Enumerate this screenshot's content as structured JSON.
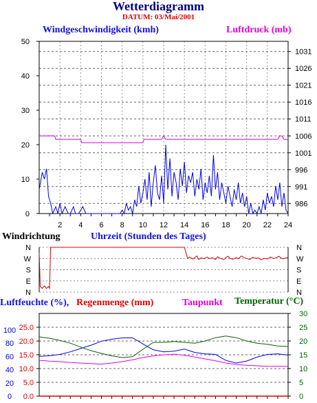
{
  "header": {
    "title": "Wetterdiagramm",
    "subtitle": "DATUM: 03/Mai/2001"
  },
  "labels": {
    "wind_speed": "Windgeschwindigkeit (kmh)",
    "pressure": "Luftdruck (mb)",
    "wind_direction": "Windrichtung",
    "time_axis": "Uhrzeit (Stunden des Tages)",
    "humidity": "Luftfeuchte (%),",
    "rain": "Regenmenge (mm)",
    "dewpoint": "Taupunkt",
    "temperature": "Temperatur (°C)"
  },
  "colors": {
    "wind_speed": "#0000dd",
    "pressure": "#e000e0",
    "wind_direction": "#dd0000",
    "humidity": "#0000dd",
    "rain": "#dd0000",
    "dewpoint": "#e000e0",
    "temperature": "#006400"
  },
  "chart_data": [
    {
      "type": "line",
      "x_range": [
        0,
        24
      ],
      "x_ticks": [
        2,
        4,
        6,
        8,
        10,
        12,
        14,
        16,
        18,
        20,
        22,
        24
      ],
      "y_left_range": [
        0,
        50
      ],
      "y_left_ticks": [
        0,
        10,
        20,
        30,
        40,
        50
      ],
      "y_right_range": [
        983,
        1034
      ],
      "y_right_ticks": [
        986,
        991,
        996,
        1001,
        1006,
        1011,
        1016,
        1021,
        1026,
        1031
      ],
      "series": [
        {
          "name": "Windgeschwindigkeit (kmh)",
          "axis": "left",
          "x": [
            0,
            0.3,
            0.5,
            0.7,
            0.9,
            1.1,
            1.3,
            1.6,
            1.8,
            2.0,
            2.2,
            2.5,
            2.8,
            3.0,
            3.3,
            3.5,
            3.8,
            4.2,
            4.5,
            5.0,
            6.0,
            7.0,
            7.8,
            8.0,
            8.2,
            8.4,
            8.6,
            8.8,
            9.0,
            9.2,
            9.4,
            9.6,
            9.8,
            10.0,
            10.2,
            10.4,
            10.6,
            10.8,
            11.0,
            11.2,
            11.4,
            11.6,
            11.8,
            12.0,
            12.2,
            12.4,
            12.6,
            12.8,
            13.0,
            13.2,
            13.4,
            13.6,
            13.8,
            14.0,
            14.2,
            14.4,
            14.6,
            14.8,
            15.0,
            15.2,
            15.4,
            15.6,
            15.8,
            16.0,
            16.2,
            16.4,
            16.6,
            16.8,
            17.0,
            17.2,
            17.4,
            17.6,
            17.8,
            18.0,
            18.2,
            18.4,
            18.6,
            18.8,
            19.0,
            19.2,
            19.4,
            19.6,
            19.8,
            20.0,
            20.2,
            20.4,
            20.6,
            20.8,
            21.0,
            21.2,
            21.4,
            21.6,
            21.8,
            22.0,
            22.2,
            22.4,
            22.6,
            22.8,
            23.0,
            23.2,
            23.4,
            23.6,
            23.8,
            24.0
          ],
          "values": [
            7,
            12,
            10,
            13,
            5,
            3,
            0,
            2,
            0,
            3,
            0,
            2,
            0,
            0,
            2,
            0,
            0,
            2,
            0,
            0,
            0,
            0,
            0,
            1,
            0,
            3,
            1,
            2,
            0,
            4,
            2,
            8,
            3,
            6,
            10,
            4,
            12,
            2,
            9,
            14,
            6,
            4,
            11,
            3,
            20,
            7,
            16,
            5,
            12,
            9,
            4,
            13,
            8,
            15,
            6,
            11,
            9,
            12,
            5,
            10,
            7,
            13,
            4,
            9,
            6,
            11,
            5,
            17,
            7,
            12,
            4,
            9,
            6,
            3,
            8,
            5,
            2,
            7,
            4,
            9,
            3,
            6,
            2,
            5,
            0,
            3,
            0,
            1,
            0,
            2,
            0,
            4,
            1,
            6,
            3,
            5,
            2,
            8,
            4,
            9,
            2,
            6,
            1,
            0
          ]
        },
        {
          "name": "Luftdruck (mb)",
          "axis": "right",
          "x": [
            0,
            1.5,
            1.6,
            4.0,
            4.1,
            7.0,
            7.1,
            10.0,
            10.1,
            11.8,
            12.0,
            12.2,
            12.4,
            23.0,
            23.2,
            23.4,
            23.6,
            24.0
          ],
          "values": [
            1006,
            1006,
            1005,
            1005,
            1004,
            1004,
            1004,
            1004,
            1005,
            1005,
            1006,
            1005,
            1005,
            1005,
            1006,
            1006,
            1005,
            1005
          ]
        }
      ]
    },
    {
      "type": "line",
      "x_range": [
        0,
        24
      ],
      "categories": [
        "N",
        "W",
        "S",
        "E",
        "N"
      ],
      "series": [
        {
          "name": "Windrichtung",
          "x": [
            0,
            0.1,
            0.3,
            0.5,
            0.7,
            0.9,
            1.0,
            1.1,
            3.0,
            8.0,
            12.0,
            14.0,
            14.3,
            14.5,
            14.8,
            15.0,
            15.2,
            15.4,
            15.6,
            15.9,
            16.2,
            16.4,
            16.7,
            17.0,
            17.2,
            17.5,
            17.8,
            18.0,
            18.2,
            18.4,
            18.7,
            19.0,
            19.2,
            19.5,
            19.8,
            20.0,
            20.3,
            20.6,
            20.9,
            21.1,
            21.4,
            21.7,
            22.0,
            22.3,
            22.6,
            22.9,
            23.1,
            23.4,
            23.6,
            23.9,
            24.0
          ],
          "values": [
            315,
            45,
            30,
            50,
            30,
            45,
            30,
            0,
            0,
            0,
            0,
            0,
            270,
            282,
            265,
            278,
            290,
            262,
            275,
            268,
            282,
            268,
            276,
            262,
            284,
            270,
            262,
            278,
            288,
            270,
            264,
            278,
            268,
            290,
            276,
            270,
            262,
            280,
            270,
            276,
            260,
            272,
            266,
            282,
            270,
            278,
            288,
            270,
            268,
            278,
            270
          ]
        }
      ]
    },
    {
      "type": "line",
      "x_range": [
        0,
        24
      ],
      "y_left_ticks": [
        0,
        20,
        40,
        60,
        80,
        100
      ],
      "y_left_range": [
        0,
        125
      ],
      "y_left2_ticks": [
        0.0,
        5.0,
        10.0,
        15.0,
        20.0,
        25.0
      ],
      "y_left2_range": [
        0,
        30
      ],
      "y_right_ticks": [
        0,
        5,
        10,
        15,
        20,
        25,
        30
      ],
      "y_right_range": [
        0,
        30
      ],
      "series": [
        {
          "name": "Luftfeuchte (%)",
          "axis": "left",
          "x": [
            0,
            1,
            2,
            3,
            4,
            5,
            6,
            7,
            8,
            9,
            10,
            11,
            12,
            13,
            14,
            15,
            16,
            17,
            18,
            19,
            20,
            21,
            22,
            23,
            24
          ],
          "values": [
            60,
            61,
            63,
            67,
            72,
            77,
            83,
            86,
            88,
            88,
            79,
            70,
            67,
            68,
            71,
            66,
            64,
            63,
            54,
            50,
            53,
            59,
            63,
            64,
            62
          ]
        },
        {
          "name": "Regenmenge (mm)",
          "axis": "left2",
          "x": [
            0,
            24
          ],
          "values": [
            0.0,
            0.0
          ]
        },
        {
          "name": "Taupunkt",
          "axis": "right",
          "x": [
            0,
            1,
            2,
            3,
            4,
            5,
            6,
            7,
            8,
            9,
            10,
            11,
            12,
            13,
            14,
            15,
            16,
            17,
            18,
            19,
            20,
            21,
            22,
            23,
            24
          ],
          "values": [
            13,
            12.7,
            12.5,
            12.2,
            12,
            11.8,
            11.6,
            12,
            12.5,
            13.2,
            14,
            14.6,
            15,
            15.2,
            14.8,
            14.2,
            13.5,
            12.8,
            12,
            11.5,
            11.2,
            11,
            10.8,
            10.8,
            10.8
          ]
        },
        {
          "name": "Temperatur (°C)",
          "axis": "right",
          "x": [
            0,
            1,
            2,
            3,
            4,
            5,
            6,
            7,
            8,
            9,
            10,
            11,
            12,
            13,
            14,
            15,
            16,
            17,
            18,
            19,
            20,
            21,
            22,
            23,
            24
          ],
          "values": [
            21.5,
            21,
            20.2,
            19.2,
            17.8,
            16.5,
            15.5,
            14.6,
            14,
            14.3,
            17,
            19.5,
            19.5,
            19.8,
            19.5,
            19.2,
            20,
            21.2,
            21.8,
            21.2,
            20,
            19.2,
            18.8,
            18.2,
            18
          ]
        }
      ]
    }
  ]
}
